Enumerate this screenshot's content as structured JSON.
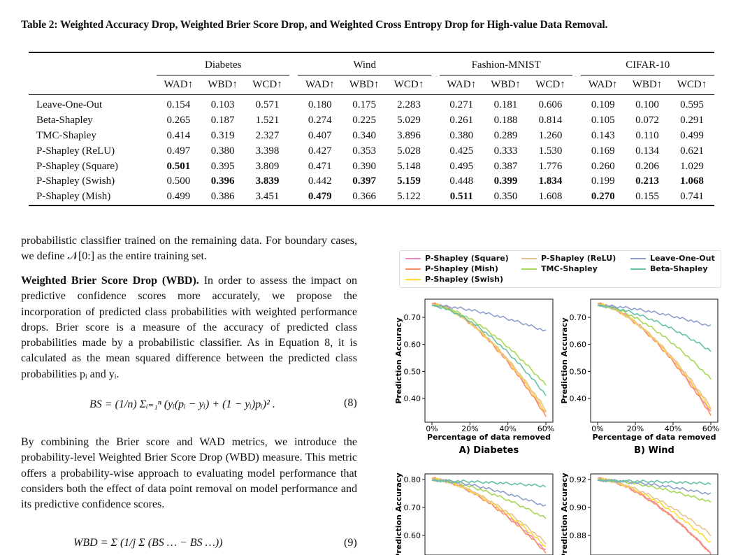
{
  "caption": "Table 2: Weighted Accuracy Drop, Weighted Brier Score Drop, and Weighted Cross Entropy Drop for High-value Data Removal.",
  "table": {
    "datasets": [
      "Diabetes",
      "Wind",
      "Fashion-MNIST",
      "CIFAR-10"
    ],
    "metrics": [
      "WAD↑",
      "WBD↑",
      "WCD↑"
    ],
    "rows": [
      {
        "method": "Leave-One-Out",
        "values": [
          "0.154",
          "0.103",
          "0.571",
          "0.180",
          "0.175",
          "2.283",
          "0.271",
          "0.181",
          "0.606",
          "0.109",
          "0.100",
          "0.595"
        ],
        "bold": []
      },
      {
        "method": "Beta-Shapley",
        "values": [
          "0.265",
          "0.187",
          "1.521",
          "0.274",
          "0.225",
          "5.029",
          "0.261",
          "0.188",
          "0.814",
          "0.105",
          "0.072",
          "0.291"
        ],
        "bold": []
      },
      {
        "method": "TMC-Shapley",
        "values": [
          "0.414",
          "0.319",
          "2.327",
          "0.407",
          "0.340",
          "3.896",
          "0.380",
          "0.289",
          "1.260",
          "0.143",
          "0.110",
          "0.499"
        ],
        "bold": []
      },
      {
        "method": "P-Shapley (ReLU)",
        "values": [
          "0.497",
          "0.380",
          "3.398",
          "0.427",
          "0.353",
          "5.028",
          "0.425",
          "0.333",
          "1.530",
          "0.169",
          "0.134",
          "0.621"
        ],
        "bold": []
      },
      {
        "method": "P-Shapley (Square)",
        "values": [
          "0.501",
          "0.395",
          "3.809",
          "0.471",
          "0.390",
          "5.148",
          "0.495",
          "0.387",
          "1.776",
          "0.260",
          "0.206",
          "1.029"
        ],
        "bold": [
          0
        ]
      },
      {
        "method": "P-Shapley (Swish)",
        "values": [
          "0.500",
          "0.396",
          "3.839",
          "0.442",
          "0.397",
          "5.159",
          "0.448",
          "0.399",
          "1.834",
          "0.199",
          "0.213",
          "1.068"
        ],
        "bold": [
          1,
          2,
          4,
          5,
          7,
          8,
          10,
          11
        ]
      },
      {
        "method": "P-Shapley (Mish)",
        "values": [
          "0.499",
          "0.386",
          "3.451",
          "0.479",
          "0.366",
          "5.122",
          "0.511",
          "0.350",
          "1.608",
          "0.270",
          "0.155",
          "0.741"
        ],
        "bold": [
          3,
          6,
          9
        ]
      }
    ]
  },
  "body": {
    "p1": "probabilistic classifier trained on the remaining data. For boundary cases, we define 𝒩[0:] as the entire training set.",
    "wbd_heading": "Weighted Brier Score Drop (WBD).",
    "p2": " In order to assess the impact on predictive confidence scores more accurately, we propose the incorporation of predicted class probabilities with weighted performance drops. Brier score is a measure of the accuracy of predicted class probabilities made by a probabilistic classifier. As in Equation 8, it is calculated as the mean squared difference between the predicted class probabilities pᵢ and yᵢ.",
    "eq8": "BS = (1/n) Σᵢ₌₁ⁿ (yᵢ(pᵢ − yᵢ) + (1 − yᵢ)pᵢ)² .",
    "eq8_num": "(8)",
    "p3": "By combining the Brier score and WAD metrics, we introduce the probability-level Weighted Brier Score Drop (WBD) measure. This metric offers a probability-wise approach to evaluating model performance that considers both the effect of data point removal on model performance and its predictive confidence scores.",
    "eq9": "WBD = Σ (1/j Σ (BS … − BS …)) ",
    "eq9_num": "(9)"
  },
  "figure": {
    "legend": [
      {
        "name": "P-Shapley (Square)",
        "color": "#e78ac3"
      },
      {
        "name": "P-Shapley (ReLU)",
        "color": "#e5c494"
      },
      {
        "name": "Leave-One-Out",
        "color": "#8da0cb"
      },
      {
        "name": "P-Shapley (Mish)",
        "color": "#fc8d62"
      },
      {
        "name": "TMC-Shapley",
        "color": "#a6d854"
      },
      {
        "name": "Beta-Shapley",
        "color": "#66c2a5"
      },
      {
        "name": "P-Shapley (Swish)",
        "color": "#ffd92f"
      }
    ],
    "panels": [
      {
        "title": "A) Diabetes",
        "ylabel": "Prediction Accuracy",
        "xlabel": "Percentage of data removed",
        "yticks": [
          "0.40",
          "0.50",
          "0.60",
          "0.70"
        ],
        "xticks": [
          "0%",
          "20%",
          "40%",
          "60%"
        ]
      },
      {
        "title": "B) Wind",
        "ylabel": "Prediction Accuracy",
        "xlabel": "Percentage of data removed",
        "yticks": [
          "0.40",
          "0.50",
          "0.60",
          "0.70"
        ],
        "xticks": [
          "0%",
          "20%",
          "40%",
          "60%"
        ]
      },
      {
        "title": "",
        "ylabel": "Prediction Accuracy",
        "xlabel": "",
        "yticks": [
          "0.60",
          "0.70",
          "0.80"
        ],
        "xticks": []
      },
      {
        "title": "",
        "ylabel": "Prediction Accuracy",
        "xlabel": "",
        "yticks": [
          "0.88",
          "0.90",
          "0.92"
        ],
        "xticks": []
      }
    ]
  }
}
